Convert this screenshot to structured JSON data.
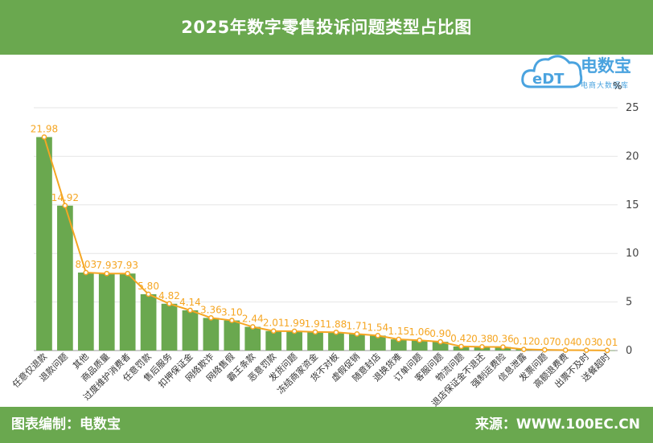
{
  "header": {
    "title": "2025年数字零售投诉问题类型占比图"
  },
  "footer": {
    "left": "图表编制：电数宝",
    "right": "来源：WWW.100EC.CN"
  },
  "logo": {
    "name": "电数宝",
    "sub": "电商大数据库",
    "mark": "eDT"
  },
  "chart_data": {
    "type": "bar",
    "unit": "%",
    "categories": [
      "任意仅退款",
      "退款问题",
      "其他",
      "商品质量",
      "过度维护消费者",
      "任意罚款",
      "售后服务",
      "扣押保证金",
      "网络欺诈",
      "网络售假",
      "霸王条款",
      "恶意罚款",
      "发货问题",
      "冻结商家资金",
      "货不对板",
      "虚假促销",
      "随意封店",
      "退换货难",
      "订单问题",
      "客服问题",
      "物流问题",
      "退店保证金不退还",
      "强制运费险",
      "信息泄露",
      "发票问题",
      "高额退费费",
      "出票不及时",
      "送餐超时"
    ],
    "values": [
      21.98,
      14.92,
      8.03,
      7.93,
      7.93,
      5.8,
      4.82,
      4.14,
      3.36,
      3.1,
      2.44,
      2.01,
      1.99,
      1.91,
      1.88,
      1.71,
      1.54,
      1.15,
      1.06,
      0.9,
      0.42,
      0.38,
      0.36,
      0.12,
      0.07,
      0.04,
      0.03,
      0.01
    ],
    "labels": [
      "21.98",
      "14.92",
      "8.03",
      "7.93",
      "7.93",
      "5.80",
      "4.82",
      "4.14",
      "3.36",
      "3.10",
      "2.44",
      "2.01",
      "1.99",
      "1.91",
      "1.88",
      "1.71",
      "1.54",
      "1.15",
      "1.06",
      "0.90",
      "0.42",
      "0.38",
      "0.36",
      "0.12",
      "0.07",
      "0.04",
      "0.03",
      "0.01"
    ],
    "ylim": [
      0,
      25
    ],
    "yticks": [
      "0",
      "5",
      "10",
      "15",
      "20",
      "25"
    ],
    "grid": true,
    "colors": {
      "bar": "#6aa84f",
      "line": "#f5a623",
      "label": "#f5a623",
      "header": "#6aa84f"
    }
  }
}
